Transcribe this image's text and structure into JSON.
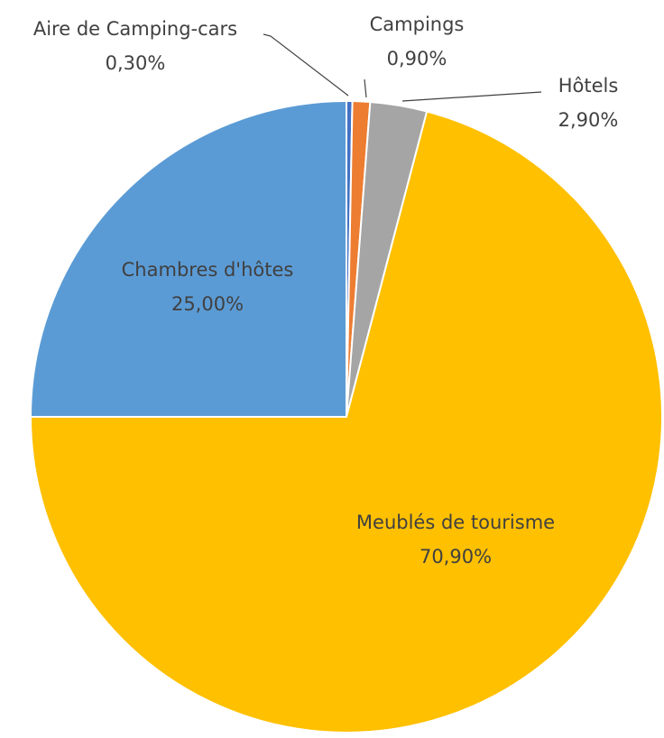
{
  "chart_data": {
    "type": "pie",
    "categories": [
      "Aire de Camping-cars",
      "Campings",
      "Hôtels",
      "Meublés de tourisme",
      "Chambres d'hôtes"
    ],
    "values": [
      0.3,
      0.9,
      2.9,
      70.9,
      25.0
    ],
    "value_labels": [
      "0,30%",
      "0,90%",
      "2,90%",
      "70,90%",
      "25,00%"
    ],
    "colors": [
      "#4472c4",
      "#ed7d31",
      "#a5a5a5",
      "#ffc000",
      "#5b9bd5"
    ]
  }
}
